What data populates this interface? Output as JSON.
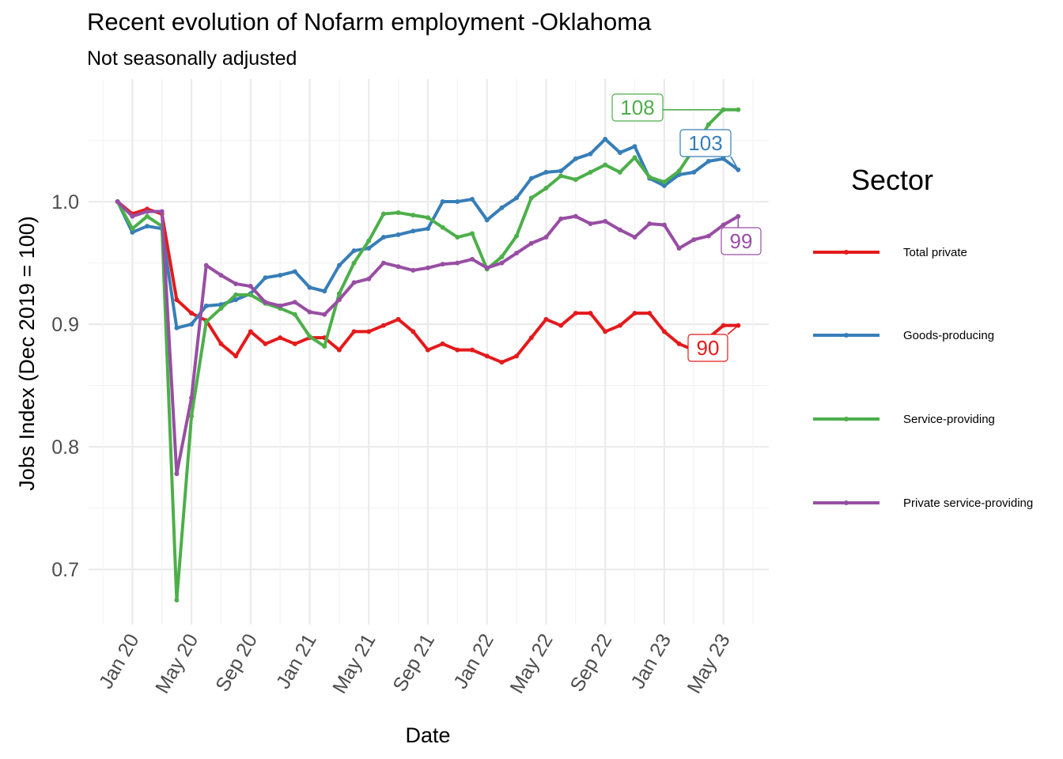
{
  "title": "Recent evolution of Nofarm employment -Oklahoma",
  "subtitle": "Not seasonally adjusted",
  "chart_data": {
    "type": "line",
    "xlabel": "Date",
    "ylabel": "Jobs Index (Dec 2019 = 100)",
    "ylim": [
      0.655,
      1.1
    ],
    "yticks": [
      0.7,
      0.8,
      0.9,
      1.0
    ],
    "ytick_labels": [
      "0.7",
      "0.8",
      "0.9",
      "1.0"
    ],
    "x_tick_dates": [
      "2020-01",
      "2020-05",
      "2020-09",
      "2021-01",
      "2021-05",
      "2021-09",
      "2022-01",
      "2022-05",
      "2022-09",
      "2023-01",
      "2023-05"
    ],
    "x_tick_labels": [
      "Jan 20",
      "May 20",
      "Sep 20",
      "Jan 21",
      "May 21",
      "Sep 21",
      "Jan 22",
      "May 22",
      "Sep 22",
      "Jan 23",
      "May 23"
    ],
    "x": [
      "2019-12",
      "2020-01",
      "2020-02",
      "2020-03",
      "2020-04",
      "2020-05",
      "2020-06",
      "2020-07",
      "2020-08",
      "2020-09",
      "2020-10",
      "2020-11",
      "2020-12",
      "2021-01",
      "2021-02",
      "2021-03",
      "2021-04",
      "2021-05",
      "2021-06",
      "2021-07",
      "2021-08",
      "2021-09",
      "2021-10",
      "2021-11",
      "2021-12",
      "2022-01",
      "2022-02",
      "2022-03",
      "2022-04",
      "2022-05",
      "2022-06",
      "2022-07",
      "2022-08",
      "2022-09",
      "2022-10",
      "2022-11",
      "2022-12",
      "2023-01",
      "2023-02",
      "2023-03",
      "2023-04",
      "2023-05",
      "2023-06"
    ],
    "grid": true,
    "legend_position": "right",
    "legend_title": "Sector",
    "series": [
      {
        "name": "Total private",
        "color": "#E41A1C",
        "end_label": "90",
        "values": [
          1.0,
          0.99,
          0.994,
          0.99,
          0.92,
          0.909,
          0.903,
          0.884,
          0.874,
          0.894,
          0.884,
          0.889,
          0.884,
          0.889,
          0.889,
          0.879,
          0.894,
          0.894,
          0.899,
          0.904,
          0.894,
          0.879,
          0.884,
          0.879,
          0.879,
          0.874,
          0.869,
          0.874,
          0.889,
          0.904,
          0.899,
          0.909,
          0.909,
          0.894,
          0.899,
          0.909,
          0.909,
          0.894,
          0.884,
          0.879,
          0.889,
          0.899,
          0.899
        ]
      },
      {
        "name": "Goods-producing",
        "color": "#377EB8",
        "end_label": "103",
        "values": [
          1.0,
          0.975,
          0.98,
          0.978,
          0.897,
          0.9,
          0.915,
          0.916,
          0.92,
          0.925,
          0.938,
          0.94,
          0.943,
          0.93,
          0.927,
          0.948,
          0.96,
          0.962,
          0.971,
          0.973,
          0.976,
          0.978,
          1.0,
          1.0,
          1.002,
          0.985,
          0.995,
          1.003,
          1.019,
          1.024,
          1.025,
          1.035,
          1.039,
          1.051,
          1.04,
          1.045,
          1.019,
          1.013,
          1.022,
          1.024,
          1.033,
          1.035,
          1.026
        ]
      },
      {
        "name": "Service-providing",
        "color": "#4DAF4A",
        "end_label": "108",
        "values": [
          1.0,
          0.978,
          0.988,
          0.98,
          0.675,
          0.825,
          0.902,
          0.913,
          0.924,
          0.924,
          0.917,
          0.913,
          0.908,
          0.89,
          0.882,
          0.925,
          0.95,
          0.968,
          0.99,
          0.991,
          0.989,
          0.987,
          0.979,
          0.971,
          0.974,
          0.945,
          0.955,
          0.972,
          1.003,
          1.011,
          1.021,
          1.018,
          1.024,
          1.03,
          1.024,
          1.036,
          1.02,
          1.016,
          1.025,
          1.043,
          1.063,
          1.075,
          1.075
        ]
      },
      {
        "name": "Private service-providing",
        "color": "#984EA3",
        "end_label": "99",
        "values": [
          1.0,
          0.988,
          0.992,
          0.992,
          0.778,
          0.84,
          0.948,
          0.94,
          0.933,
          0.931,
          0.918,
          0.915,
          0.918,
          0.91,
          0.908,
          0.92,
          0.934,
          0.937,
          0.95,
          0.947,
          0.944,
          0.946,
          0.949,
          0.95,
          0.953,
          0.946,
          0.95,
          0.958,
          0.966,
          0.971,
          0.986,
          0.988,
          0.982,
          0.984,
          0.977,
          0.971,
          0.982,
          0.981,
          0.962,
          0.969,
          0.972,
          0.981,
          0.988
        ]
      }
    ]
  }
}
